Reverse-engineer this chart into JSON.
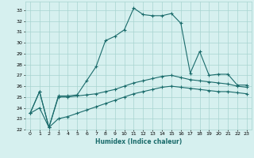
{
  "title": "",
  "xlabel": "Humidex (Indice chaleur)",
  "bg_color": "#d6f0ef",
  "grid_color": "#a8d4d0",
  "line_color": "#1a6b6b",
  "xlim": [
    -0.5,
    23.5
  ],
  "ylim": [
    22,
    33.8
  ],
  "yticks": [
    22,
    23,
    24,
    25,
    26,
    27,
    28,
    29,
    30,
    31,
    32,
    33
  ],
  "xticks": [
    0,
    1,
    2,
    3,
    4,
    5,
    6,
    7,
    8,
    9,
    10,
    11,
    12,
    13,
    14,
    15,
    16,
    17,
    18,
    19,
    20,
    21,
    22,
    23
  ],
  "line1": [
    23.5,
    25.5,
    22.2,
    25.1,
    25.1,
    25.2,
    26.5,
    27.8,
    30.2,
    30.6,
    31.2,
    33.2,
    32.6,
    32.5,
    32.5,
    32.7,
    31.8,
    27.2,
    29.2,
    27.0,
    27.1,
    27.1,
    26.1,
    26.1
  ],
  "line2": [
    23.5,
    25.5,
    22.2,
    25.0,
    25.0,
    25.1,
    25.2,
    25.3,
    25.5,
    25.7,
    26.0,
    26.3,
    26.5,
    26.7,
    26.9,
    27.0,
    26.8,
    26.6,
    26.5,
    26.4,
    26.3,
    26.2,
    26.0,
    25.9
  ],
  "line3": [
    23.5,
    24.0,
    22.2,
    23.0,
    23.2,
    23.5,
    23.8,
    24.1,
    24.4,
    24.7,
    25.0,
    25.3,
    25.5,
    25.7,
    25.9,
    26.0,
    25.9,
    25.8,
    25.7,
    25.6,
    25.5,
    25.5,
    25.4,
    25.3
  ]
}
